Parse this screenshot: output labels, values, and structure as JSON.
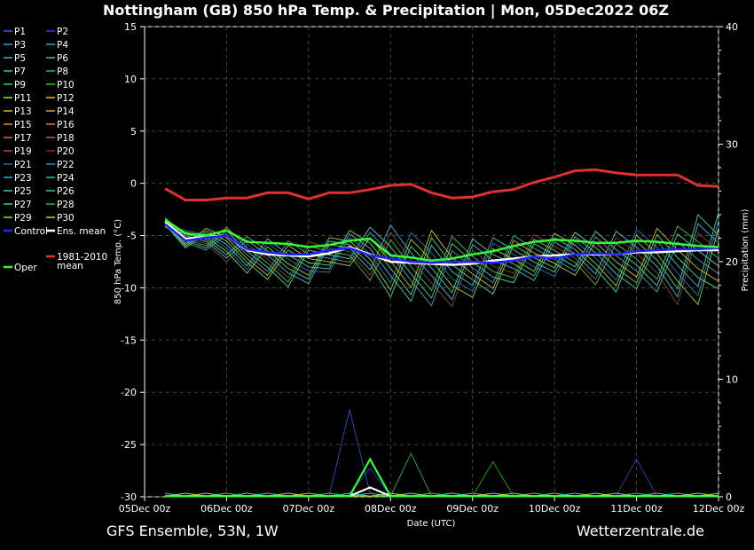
{
  "colors": {
    "background": "#000000",
    "grid": "#555555",
    "ens_mean": "#ffffff",
    "oper": "#33ff33",
    "control": "#2222ff",
    "climate_mean": "#e03030"
  },
  "chart_data": {
    "type": "line",
    "title": "Nottingham  (GB)  850 hPa Temp. & Precipitation | Mon, 05Dec2022 06Z",
    "xlabel": "Date (UTC)",
    "ylabel": "850 hPa Temp. (°C)",
    "y2label": "Precipitation (mm)",
    "ylim": [
      -30,
      15
    ],
    "y2lim": [
      0,
      40
    ],
    "yticks": [
      "15",
      "10",
      "5",
      "0",
      "-5",
      "-10",
      "-15",
      "-20",
      "-25",
      "-30"
    ],
    "y2ticks": [
      "40",
      "30",
      "20",
      "10",
      "0"
    ],
    "x_tick_labels": [
      "05Dec 00z",
      "06Dec 00z",
      "07Dec 00z",
      "08Dec 00z",
      "09Dec 00z",
      "10Dec 00z",
      "11Dec 00z",
      "12Dec 00z"
    ],
    "x_hours": [
      6,
      12,
      18,
      24,
      30,
      36,
      42,
      48,
      54,
      60,
      66,
      72,
      78,
      84,
      90,
      96,
      102,
      108,
      114,
      120,
      126,
      132,
      138,
      144,
      150,
      156,
      162,
      168
    ],
    "grid": true,
    "legend_position": "left, outside plot",
    "footer_left": "GFS Ensemble, 53N, 1W",
    "footer_right": "Wetterzentrale.de",
    "legend": [
      {
        "label": "P1",
        "color": "#3060ff"
      },
      {
        "label": "P2",
        "color": "#1a40ff"
      },
      {
        "label": "P3",
        "color": "#2aa0e0"
      },
      {
        "label": "P4",
        "color": "#20b0d0"
      },
      {
        "label": "P5",
        "color": "#20c0c0"
      },
      {
        "label": "P6",
        "color": "#20d0a0"
      },
      {
        "label": "P7",
        "color": "#20c890"
      },
      {
        "label": "P8",
        "color": "#20c070"
      },
      {
        "label": "P9",
        "color": "#30d060"
      },
      {
        "label": "P10",
        "color": "#20d020"
      },
      {
        "label": "P11",
        "color": "#c0d040"
      },
      {
        "label": "P12",
        "color": "#d0c040"
      },
      {
        "label": "P13",
        "color": "#e0b030"
      },
      {
        "label": "P14",
        "color": "#e0a030"
      },
      {
        "label": "P15",
        "color": "#e09040"
      },
      {
        "label": "P16",
        "color": "#d08040"
      },
      {
        "label": "P17",
        "color": "#d07040"
      },
      {
        "label": "P18",
        "color": "#c06030"
      },
      {
        "label": "P19",
        "color": "#c04030"
      },
      {
        "label": "P20",
        "color": "#a02020"
      },
      {
        "label": "P21",
        "color": "#2060e0"
      },
      {
        "label": "P22",
        "color": "#2090e0"
      },
      {
        "label": "P23",
        "color": "#20b0e0"
      },
      {
        "label": "P24",
        "color": "#20c0c0"
      },
      {
        "label": "P25",
        "color": "#20d0b0"
      },
      {
        "label": "P26",
        "color": "#20d090"
      },
      {
        "label": "P27",
        "color": "#30e070"
      },
      {
        "label": "P28",
        "color": "#20c040"
      },
      {
        "label": "P29",
        "color": "#80e040"
      },
      {
        "label": "P30",
        "color": "#d0d020"
      },
      {
        "label": "Control",
        "color": "#2222ff"
      },
      {
        "label": "Ens. mean",
        "color": "#ffffff"
      },
      {
        "label": "Oper",
        "color": "#33ff33"
      },
      {
        "label": "1981-2010 mean",
        "color": "#e03030"
      }
    ],
    "series": [
      {
        "name": "1981-2010 mean",
        "role": "climate",
        "values": [
          -0.5,
          -1.6,
          -1.6,
          -1.4,
          -1.4,
          -0.9,
          -0.9,
          -1.5,
          -0.9,
          -0.9,
          -0.6,
          -0.2,
          -0.1,
          -0.9,
          -1.4,
          -1.3,
          -0.8,
          -0.6,
          0.1,
          0.6,
          1.2,
          1.3,
          1.0,
          0.8,
          0.8,
          0.8,
          -0.2,
          -0.3
        ]
      },
      {
        "name": "Ens. mean",
        "role": "mean",
        "values": [
          -3.7,
          -5.3,
          -5.1,
          -5.0,
          -6.4,
          -6.8,
          -6.9,
          -7.0,
          -6.7,
          -6.1,
          -6.8,
          -7.5,
          -7.6,
          -7.7,
          -7.8,
          -7.7,
          -7.4,
          -7.2,
          -7.0,
          -6.9,
          -6.8,
          -6.8,
          -6.8,
          -6.6,
          -6.6,
          -6.5,
          -6.4,
          -6.4
        ]
      },
      {
        "name": "Control",
        "role": "control",
        "values": [
          -3.9,
          -5.5,
          -5.2,
          -5.0,
          -6.3,
          -6.6,
          -6.8,
          -6.8,
          -6.4,
          -6.2,
          -6.9,
          -7.2,
          -7.5,
          -7.6,
          -7.5,
          -7.5,
          -7.6,
          -7.4,
          -7.0,
          -7.2,
          -6.8,
          -6.7,
          -6.8,
          -6.5,
          -6.4,
          -6.3,
          -6.3,
          -6.2
        ]
      },
      {
        "name": "Oper",
        "role": "oper",
        "values": [
          -3.5,
          -4.8,
          -5.0,
          -4.5,
          -5.6,
          -5.7,
          -5.8,
          -6.1,
          -5.9,
          -5.5,
          -5.3,
          -6.9,
          -7.1,
          -7.4,
          -7.2,
          -6.8,
          -6.5,
          -6.0,
          -5.6,
          -5.4,
          -5.5,
          -5.7,
          -5.7,
          -5.5,
          -5.6,
          -5.8,
          -6.0,
          -6.1
        ]
      }
    ],
    "member_spread": {
      "upper": [
        -3.3,
        -4.5,
        -4.3,
        -4.2,
        -5.1,
        -5.3,
        -5.5,
        -5.6,
        -5.2,
        -4.5,
        -4.2,
        -4.0,
        -4.7,
        -4.5,
        -5.1,
        -5.3,
        -5.2,
        -5.0,
        -4.9,
        -4.8,
        -4.7,
        -4.6,
        -4.6,
        -4.4,
        -4.3,
        -4.1,
        -3.0,
        -2.8
      ],
      "lower": [
        -4.2,
        -6.2,
        -6.4,
        -7.5,
        -8.6,
        -9.2,
        -9.9,
        -9.6,
        -8.5,
        -7.9,
        -9.3,
        -10.9,
        -11.3,
        -11.7,
        -11.8,
        -10.9,
        -10.6,
        -9.5,
        -9.3,
        -8.9,
        -8.8,
        -9.7,
        -10.4,
        -10.1,
        -10.4,
        -11.6,
        -11.6,
        -10.1
      ]
    },
    "precip_peaks": [
      {
        "label": "P1",
        "hour": 60,
        "value_mm": 7.4
      },
      {
        "label": "P2",
        "hour": 66,
        "value_mm": 2.4
      },
      {
        "label": "Oper",
        "hour": 66,
        "value_mm": 3.2
      },
      {
        "label": "P27",
        "hour": 78,
        "value_mm": 3.7
      },
      {
        "label": "P10",
        "hour": 102,
        "value_mm": 3.0
      },
      {
        "label": "P21",
        "hour": 144,
        "value_mm": 3.2
      },
      {
        "label": "Ens. mean",
        "hour": 66,
        "value_mm": 0.8
      }
    ]
  }
}
